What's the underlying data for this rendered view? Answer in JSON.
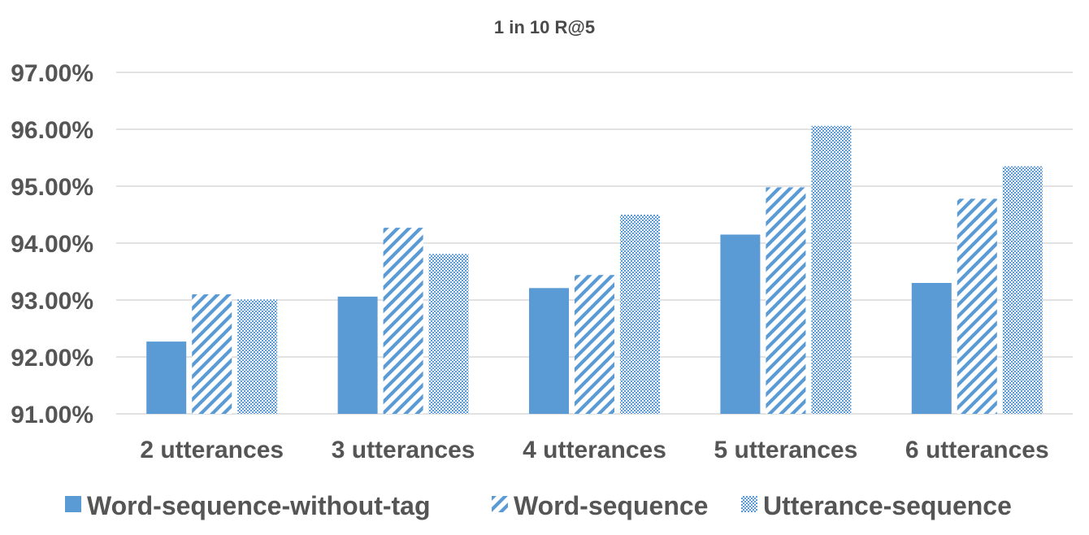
{
  "chart_data": {
    "type": "bar",
    "title": "1 in 10 R@5",
    "xlabel": "",
    "ylabel": "",
    "categories": [
      "2 utterances",
      "3 utterances",
      "4 utterances",
      "5 utterances",
      "6 utterances"
    ],
    "series": [
      {
        "name": "Word-sequence-without-tag",
        "values": [
          92.27,
          93.06,
          93.21,
          94.15,
          93.3
        ],
        "color": "#5b9bd5",
        "pattern": "solid"
      },
      {
        "name": "Word-sequence",
        "values": [
          93.1,
          94.27,
          93.44,
          94.98,
          94.78
        ],
        "color": "#5b9bd5",
        "pattern": "diagonal-stripes"
      },
      {
        "name": "Utterance-sequence",
        "values": [
          93.01,
          93.81,
          94.5,
          96.06,
          95.35
        ],
        "color": "#5b9bd5",
        "pattern": "checker"
      }
    ],
    "ylim": [
      91,
      97
    ],
    "yticks": [
      91,
      92,
      93,
      94,
      95,
      96,
      97
    ],
    "ytick_labels": [
      "91.00%",
      "92.00%",
      "93.00%",
      "94.00%",
      "95.00%",
      "96.00%",
      "97.00%"
    ],
    "grid": true,
    "legend_position": "bottom"
  }
}
